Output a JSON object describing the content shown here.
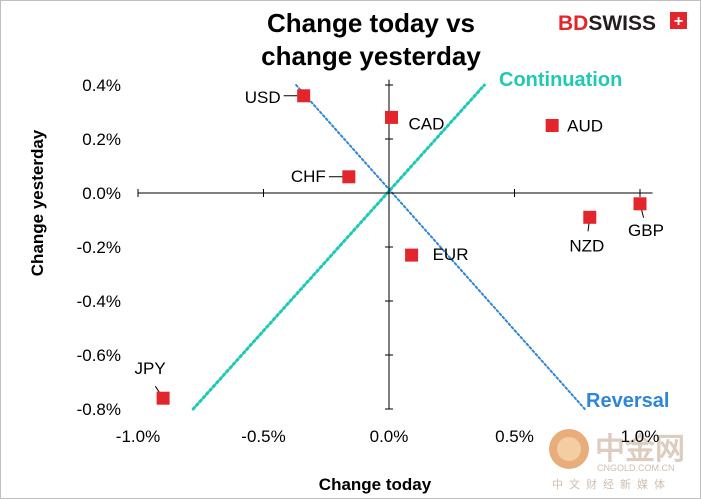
{
  "chart_data": {
    "type": "scatter",
    "title_lines": [
      "Change today vs",
      "change yesterday"
    ],
    "xlabel": "Change today",
    "ylabel": "Change yesterday",
    "xlim": [
      -1.0,
      1.05
    ],
    "ylim": [
      -0.8,
      0.42
    ],
    "x_ticks": [
      -1.0,
      -0.5,
      0.0,
      0.5,
      1.0
    ],
    "x_tick_labels": [
      "-1.0%",
      "-0.5%",
      "0.0%",
      "0.5%",
      "1.0%"
    ],
    "y_ticks": [
      0.4,
      0.2,
      0.0,
      -0.2,
      -0.4,
      -0.6,
      -0.8
    ],
    "y_tick_labels": [
      "0.4%",
      "0.2%",
      "0.0%",
      "-0.2%",
      "-0.4%",
      "-0.6%",
      "-0.8%"
    ],
    "points": [
      {
        "label": "USD",
        "x": -0.34,
        "y": 0.36
      },
      {
        "label": "CAD",
        "x": 0.01,
        "y": 0.28
      },
      {
        "label": "AUD",
        "x": 0.65,
        "y": 0.25
      },
      {
        "label": "CHF",
        "x": -0.16,
        "y": 0.06
      },
      {
        "label": "GBP",
        "x": 1.0,
        "y": -0.04
      },
      {
        "label": "NZD",
        "x": 0.8,
        "y": -0.09
      },
      {
        "label": "EUR",
        "x": 0.09,
        "y": -0.23
      },
      {
        "label": "JPY",
        "x": -0.9,
        "y": -0.76
      }
    ],
    "guides": [
      {
        "name": "Continuation",
        "from": [
          -0.78,
          -0.8
        ],
        "to": [
          0.38,
          0.4
        ]
      },
      {
        "name": "Reversal",
        "from": [
          -0.37,
          0.4
        ],
        "to": [
          0.78,
          -0.8
        ]
      }
    ]
  },
  "logo": {
    "part1": "BD",
    "part2": "SWISS",
    "plus": "+"
  },
  "watermark": {
    "name": "中金网",
    "site": "CNGOLD.COM.CN",
    "tagline": "中文财经新媒体"
  },
  "colors": {
    "marker": "#e3262b",
    "continuation": "#1fc9b5",
    "reversal": "#2e86d9",
    "axis": "#000000"
  }
}
